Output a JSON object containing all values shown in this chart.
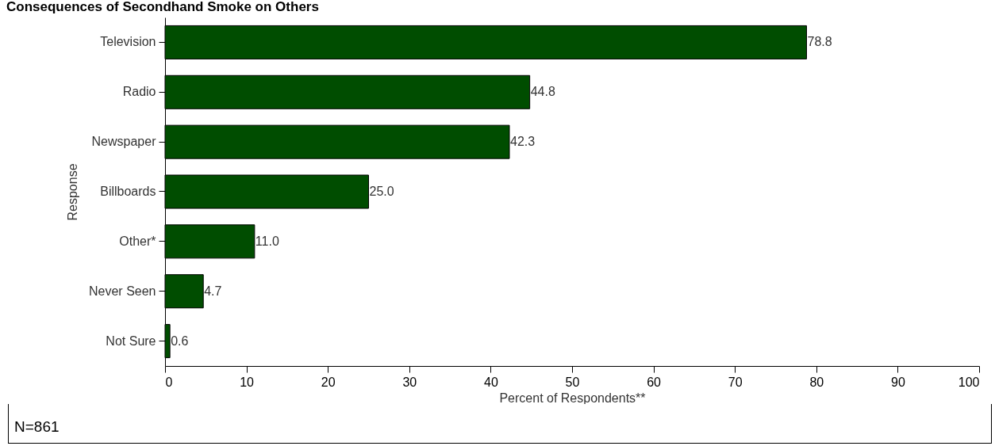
{
  "chart_data": {
    "type": "bar",
    "orientation": "horizontal",
    "title": "Consequences of Secondhand Smoke on Others",
    "xlabel": "Percent of Respondents**",
    "ylabel": "Response",
    "categories": [
      "Television",
      "Radio",
      "Newspaper",
      "Billboards",
      "Other*",
      "Never Seen",
      "Not Sure"
    ],
    "values": [
      78.8,
      44.8,
      42.3,
      25.0,
      11.0,
      4.7,
      0.6
    ],
    "value_labels": [
      "78.8",
      "44.8",
      "42.3",
      "25.0",
      "11.0",
      "4.7",
      "0.6"
    ],
    "color": "#004d00",
    "xlim": [
      0,
      100
    ],
    "xticks": [
      0,
      10,
      20,
      30,
      40,
      50,
      60,
      70,
      80,
      90,
      100
    ],
    "grid": false,
    "annotations": [
      "N=861"
    ]
  }
}
